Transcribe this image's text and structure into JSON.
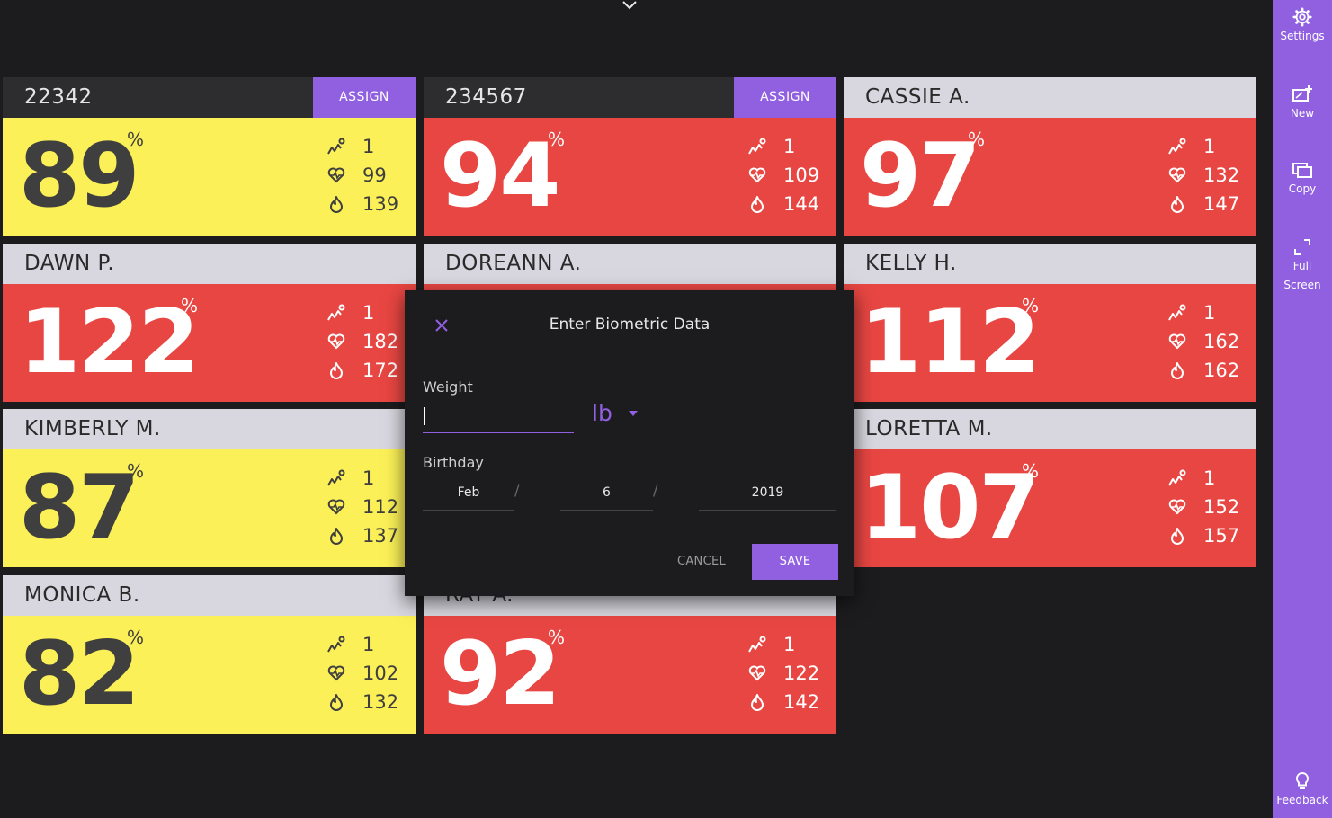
{
  "top": {
    "chevron_icon": "chevron-down-icon"
  },
  "sidebar": {
    "items": [
      {
        "label": "Settings",
        "icon": "gear-icon"
      },
      {
        "label": "New",
        "icon": "new-screen-icon"
      },
      {
        "label": "Copy",
        "icon": "copy-icon"
      },
      {
        "label": "Full",
        "label2": "Screen",
        "icon": "fullscreen-icon"
      }
    ],
    "feedback": {
      "label": "Feedback",
      "icon": "lightbulb-icon"
    }
  },
  "cards": [
    {
      "name": "22342",
      "assign": "ASSIGN",
      "percent": "89",
      "pct_sign": "%",
      "color": "#fbf057",
      "stats": [
        "1",
        "99",
        "139"
      ]
    },
    {
      "name": "234567",
      "assign": "ASSIGN",
      "percent": "94",
      "pct_sign": "%",
      "color": "#e84642",
      "stats": [
        "1",
        "109",
        "144"
      ]
    },
    {
      "name": "CASSIE A.",
      "percent": "97",
      "pct_sign": "%",
      "color": "#e84642",
      "stats": [
        "1",
        "132",
        "147"
      ]
    },
    {
      "name": "DAWN P.",
      "percent": "122",
      "pct_sign": "%",
      "color": "#e84642",
      "stats": [
        "1",
        "182",
        "172"
      ]
    },
    {
      "name": "DOREANN A.",
      "percent": "",
      "pct_sign": "",
      "color": "#e84642",
      "stats": []
    },
    {
      "name": "KELLY H.",
      "percent": "112",
      "pct_sign": "%",
      "color": "#e84642",
      "stats": [
        "1",
        "162",
        "162"
      ]
    },
    {
      "name": "KIMBERLY M.",
      "percent": "87",
      "pct_sign": "%",
      "color": "#fbf057",
      "stats": [
        "1",
        "112",
        "137"
      ]
    },
    {
      "name": "",
      "percent": "",
      "pct_sign": "",
      "color": "#e84642",
      "stats": []
    },
    {
      "name": "LORETTA M.",
      "percent": "107",
      "pct_sign": "%",
      "color": "#e84642",
      "stats": [
        "1",
        "152",
        "157"
      ]
    },
    {
      "name": "MONICA B.",
      "percent": "82",
      "pct_sign": "%",
      "color": "#fbf057",
      "stats": [
        "1",
        "102",
        "132"
      ]
    },
    {
      "name": "RAY A.",
      "percent": "92",
      "pct_sign": "%",
      "color": "#e84642",
      "stats": [
        "1",
        "122",
        "142"
      ]
    }
  ],
  "stat_icons": [
    "zones-icon",
    "heart-rate-icon",
    "calories-flame-icon"
  ],
  "dialog": {
    "title": "Enter Biometric Data",
    "weight_label": "Weight",
    "weight_value": "",
    "unit": "lb",
    "birthday_label": "Birthday",
    "month": "Feb",
    "day": "6",
    "year": "2019",
    "slash": "/",
    "cancel": "CANCEL",
    "save": "SAVE"
  },
  "colors": {
    "accent": "#9060e0",
    "warn_yellow": "#fbf057",
    "alert_red": "#e84642",
    "background": "#1c1c1e"
  }
}
